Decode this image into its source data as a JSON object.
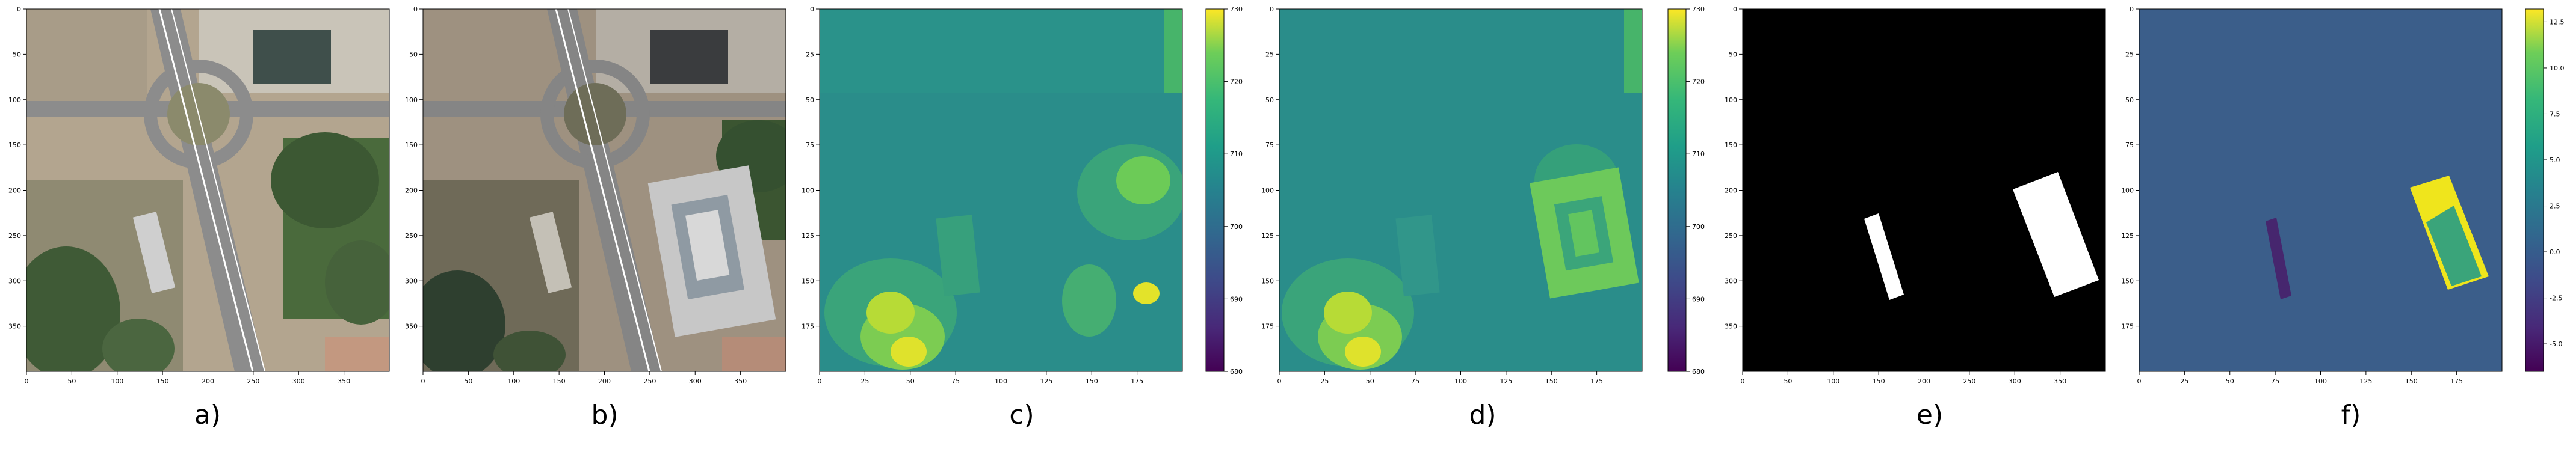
{
  "figure": {
    "panels": [
      {
        "id": "a",
        "caption": "a)",
        "content": "aerial photo 2018 (roundabout, road, building)",
        "x_ticks": [
          "0",
          "50",
          "100",
          "150",
          "200",
          "250",
          "300",
          "350"
        ],
        "y_ticks": [
          "0",
          "50",
          "100",
          "150",
          "200",
          "250",
          "300",
          "350"
        ],
        "x_range": [
          0,
          400
        ],
        "y_range": [
          0,
          400
        ]
      },
      {
        "id": "b",
        "caption": "b)",
        "content": "aerial photo later year (new building on right)",
        "x_ticks": [
          "0",
          "50",
          "100",
          "150",
          "200",
          "250",
          "300",
          "350"
        ],
        "y_ticks": [
          "0",
          "50",
          "100",
          "150",
          "200",
          "250",
          "300",
          "350"
        ],
        "x_range": [
          0,
          400
        ],
        "y_range": [
          0,
          400
        ]
      },
      {
        "id": "c",
        "caption": "c)",
        "content": "elevation map (viridis)",
        "x_ticks": [
          "0",
          "25",
          "50",
          "75",
          "100",
          "125",
          "150",
          "175"
        ],
        "y_ticks": [
          "0",
          "25",
          "50",
          "75",
          "100",
          "125",
          "150",
          "175"
        ],
        "x_range": [
          0,
          200
        ],
        "y_range": [
          0,
          200
        ],
        "colorbar": {
          "ticks": [
            "730",
            "720",
            "710",
            "700",
            "690",
            "680"
          ],
          "range": [
            680,
            730
          ]
        }
      },
      {
        "id": "d",
        "caption": "d)",
        "content": "elevation map later year (viridis)",
        "x_ticks": [
          "0",
          "25",
          "50",
          "75",
          "100",
          "125",
          "150",
          "175"
        ],
        "y_ticks": [
          "0",
          "25",
          "50",
          "75",
          "100",
          "125",
          "150",
          "175"
        ],
        "x_range": [
          0,
          200
        ],
        "y_range": [
          0,
          200
        ],
        "colorbar": {
          "ticks": [
            "730",
            "720",
            "710",
            "700",
            "690",
            "680"
          ],
          "range": [
            680,
            730
          ]
        }
      },
      {
        "id": "e",
        "caption": "e)",
        "content": "binary change mask",
        "x_ticks": [
          "0",
          "50",
          "100",
          "150",
          "200",
          "250",
          "300",
          "350"
        ],
        "y_ticks": [
          "0",
          "50",
          "100",
          "150",
          "200",
          "250",
          "300",
          "350"
        ],
        "x_range": [
          0,
          400
        ],
        "y_range": [
          0,
          400
        ]
      },
      {
        "id": "f",
        "caption": "f)",
        "content": "elevation difference map",
        "x_ticks": [
          "0",
          "25",
          "50",
          "75",
          "100",
          "125",
          "150",
          "175"
        ],
        "y_ticks": [
          "0",
          "25",
          "50",
          "75",
          "100",
          "125",
          "150",
          "175"
        ],
        "x_range": [
          0,
          200
        ],
        "y_range": [
          0,
          200
        ],
        "colorbar": {
          "ticks": [
            "12.5",
            "10.0",
            "7.5",
            "5.0",
            "2.5",
            "0.0",
            "-2.5",
            "-5.0"
          ],
          "range": [
            -6.5,
            13.2
          ]
        }
      }
    ]
  }
}
